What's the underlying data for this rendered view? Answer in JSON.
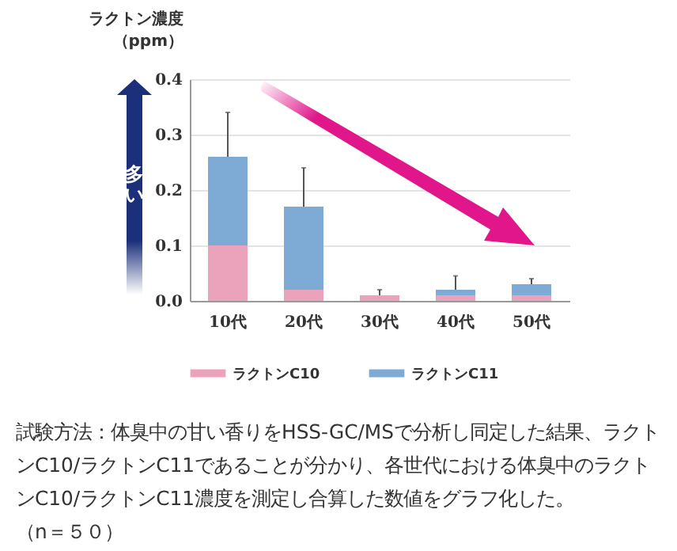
{
  "chart_data": {
    "type": "bar",
    "stacked": true,
    "ylabel": "ラクトン濃度（ppm）",
    "categories": [
      "10代",
      "20代",
      "30代",
      "40代",
      "50代"
    ],
    "series": [
      {
        "name": "ラクトンC10",
        "color": "#eaa3bb",
        "values": [
          0.1,
          0.02,
          0.01,
          0.01,
          0.01
        ]
      },
      {
        "name": "ラクトンC11",
        "color": "#7eabd6",
        "values": [
          0.16,
          0.15,
          0,
          0.01,
          0.02
        ],
        "errors": [
          [
            0.26,
            0.34
          ],
          [
            0.17,
            0.24
          ],
          [
            0.01,
            0.02
          ],
          [
            0.02,
            0.045
          ],
          [
            0.03,
            0.04
          ]
        ]
      }
    ],
    "ylim": [
      0,
      0.4
    ],
    "yticks": [
      {
        "value": 0,
        "label": "0.0"
      },
      0.1,
      0.2,
      0.3,
      0.4
    ],
    "grid": "y",
    "legend": "bottom",
    "annotations": [
      "多い",
      "試験方法：体臭中の甘い香りをHSS-GC/MSで分析し同定した結果、ラクトンC10/ラクトンC11であることが分かり、各世代における体臭中のラクトンC10/ラクトンC11濃度を測定し合算した数値をグラフ化した。",
      "（n＝５０）"
    ]
  }
}
